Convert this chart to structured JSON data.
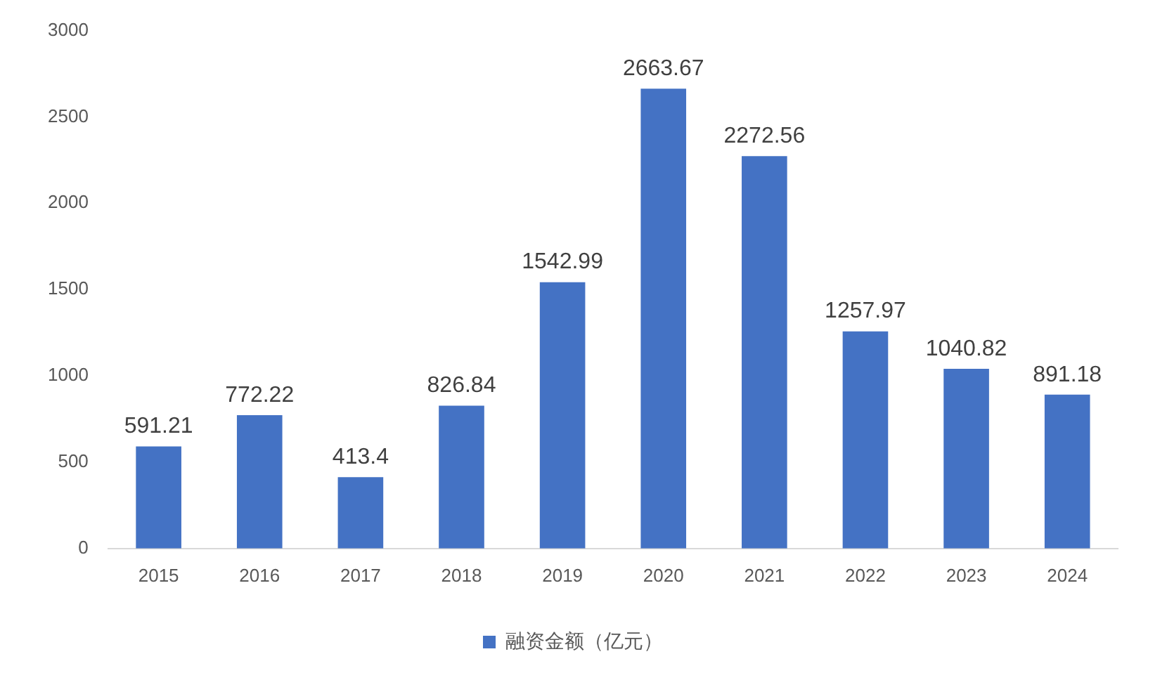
{
  "chart_data": {
    "type": "bar",
    "categories": [
      "2015",
      "2016",
      "2017",
      "2018",
      "2019",
      "2020",
      "2021",
      "2022",
      "2023",
      "2024"
    ],
    "series": [
      {
        "name": "融资金额（亿元）",
        "color": "#4472c4",
        "values": [
          591.21,
          772.22,
          413.4,
          826.84,
          1542.99,
          2663.67,
          2272.56,
          1257.97,
          1040.82,
          891.18
        ]
      }
    ],
    "ylim": [
      0,
      3000
    ],
    "yticks": [
      0,
      500,
      1000,
      1500,
      2000,
      2500,
      3000
    ],
    "grid": false,
    "legend": "bottom",
    "data_labels": true
  }
}
